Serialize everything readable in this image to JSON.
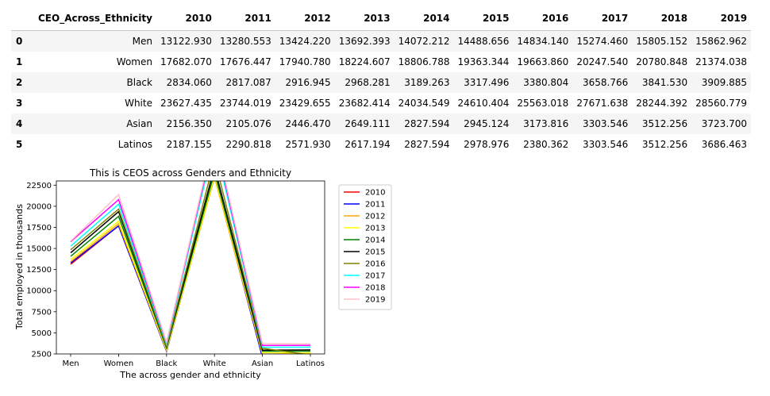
{
  "table": {
    "index_header": "",
    "columns": [
      "CEO_Across_Ethnicity",
      "2010",
      "2011",
      "2012",
      "2013",
      "2014",
      "2015",
      "2016",
      "2017",
      "2018",
      "2019"
    ],
    "rows": [
      {
        "index": "0",
        "cells": [
          "Men",
          "13122.930",
          "13280.553",
          "13424.220",
          "13692.393",
          "14072.212",
          "14488.656",
          "14834.140",
          "15274.460",
          "15805.152",
          "15862.962"
        ]
      },
      {
        "index": "1",
        "cells": [
          "Women",
          "17682.070",
          "17676.447",
          "17940.780",
          "18224.607",
          "18806.788",
          "19363.344",
          "19663.860",
          "20247.540",
          "20780.848",
          "21374.038"
        ]
      },
      {
        "index": "2",
        "cells": [
          "Black",
          "2834.060",
          "2817.087",
          "2916.945",
          "2968.281",
          "3189.263",
          "3317.496",
          "3380.804",
          "3658.766",
          "3841.530",
          "3909.885"
        ]
      },
      {
        "index": "3",
        "cells": [
          "White",
          "23627.435",
          "23744.019",
          "23429.655",
          "23682.414",
          "24034.549",
          "24610.404",
          "25563.018",
          "27671.638",
          "28244.392",
          "28560.779"
        ]
      },
      {
        "index": "4",
        "cells": [
          "Asian",
          "2156.350",
          "2105.076",
          "2446.470",
          "2649.111",
          "2827.594",
          "2945.124",
          "3173.816",
          "3303.546",
          "3512.256",
          "3723.700"
        ]
      },
      {
        "index": "5",
        "cells": [
          "Latinos",
          "2187.155",
          "2290.818",
          "2571.930",
          "2617.194",
          "2827.594",
          "2978.976",
          "2380.362",
          "3303.546",
          "3512.256",
          "3686.463"
        ]
      }
    ]
  },
  "chart_data": {
    "type": "line",
    "title": "This is CEOS across Genders and Ethnicity",
    "xlabel": "The across gender  and ethnicity",
    "ylabel": "Total employed in thousands",
    "categories": [
      "Men",
      "Women",
      "Black",
      "White",
      "Asian",
      "Latinos"
    ],
    "ylim": [
      2500,
      23000
    ],
    "yticks": [
      2500,
      5000,
      7500,
      10000,
      12500,
      15000,
      17500,
      20000,
      22500
    ],
    "legend_position": "outside-right",
    "grid": false,
    "series": [
      {
        "name": "2010",
        "color": "#ff0000",
        "values": [
          13122.93,
          17682.07,
          2834.06,
          23627.435,
          2156.35,
          2187.155
        ]
      },
      {
        "name": "2011",
        "color": "#0000ff",
        "values": [
          13280.553,
          17676.447,
          2817.087,
          23744.019,
          2105.076,
          2290.818
        ]
      },
      {
        "name": "2012",
        "color": "#ffa500",
        "values": [
          13424.22,
          17940.78,
          2916.945,
          23429.655,
          2446.47,
          2571.93
        ]
      },
      {
        "name": "2013",
        "color": "#ffff00",
        "values": [
          13692.393,
          18224.607,
          2968.281,
          23682.414,
          2649.111,
          2617.194
        ]
      },
      {
        "name": "2014",
        "color": "#008000",
        "values": [
          14072.212,
          18806.788,
          3189.263,
          24034.549,
          2827.594,
          2827.594
        ]
      },
      {
        "name": "2015",
        "color": "#000000",
        "values": [
          14488.656,
          19363.344,
          3317.496,
          24610.404,
          2945.124,
          2978.976
        ]
      },
      {
        "name": "2016",
        "color": "#808000",
        "values": [
          14834.14,
          19663.86,
          3380.804,
          25563.018,
          3173.816,
          2380.362
        ]
      },
      {
        "name": "2017",
        "color": "#00ffff",
        "values": [
          15274.46,
          20247.54,
          3658.766,
          27671.638,
          3303.546,
          3303.546
        ]
      },
      {
        "name": "2018",
        "color": "#ff00ff",
        "values": [
          15805.152,
          20780.848,
          3841.53,
          28244.392,
          3512.256,
          3512.256
        ]
      },
      {
        "name": "2019",
        "color": "#ffc0cb",
        "values": [
          15862.962,
          21374.038,
          3909.885,
          28560.779,
          3723.7,
          3686.463
        ]
      }
    ]
  }
}
